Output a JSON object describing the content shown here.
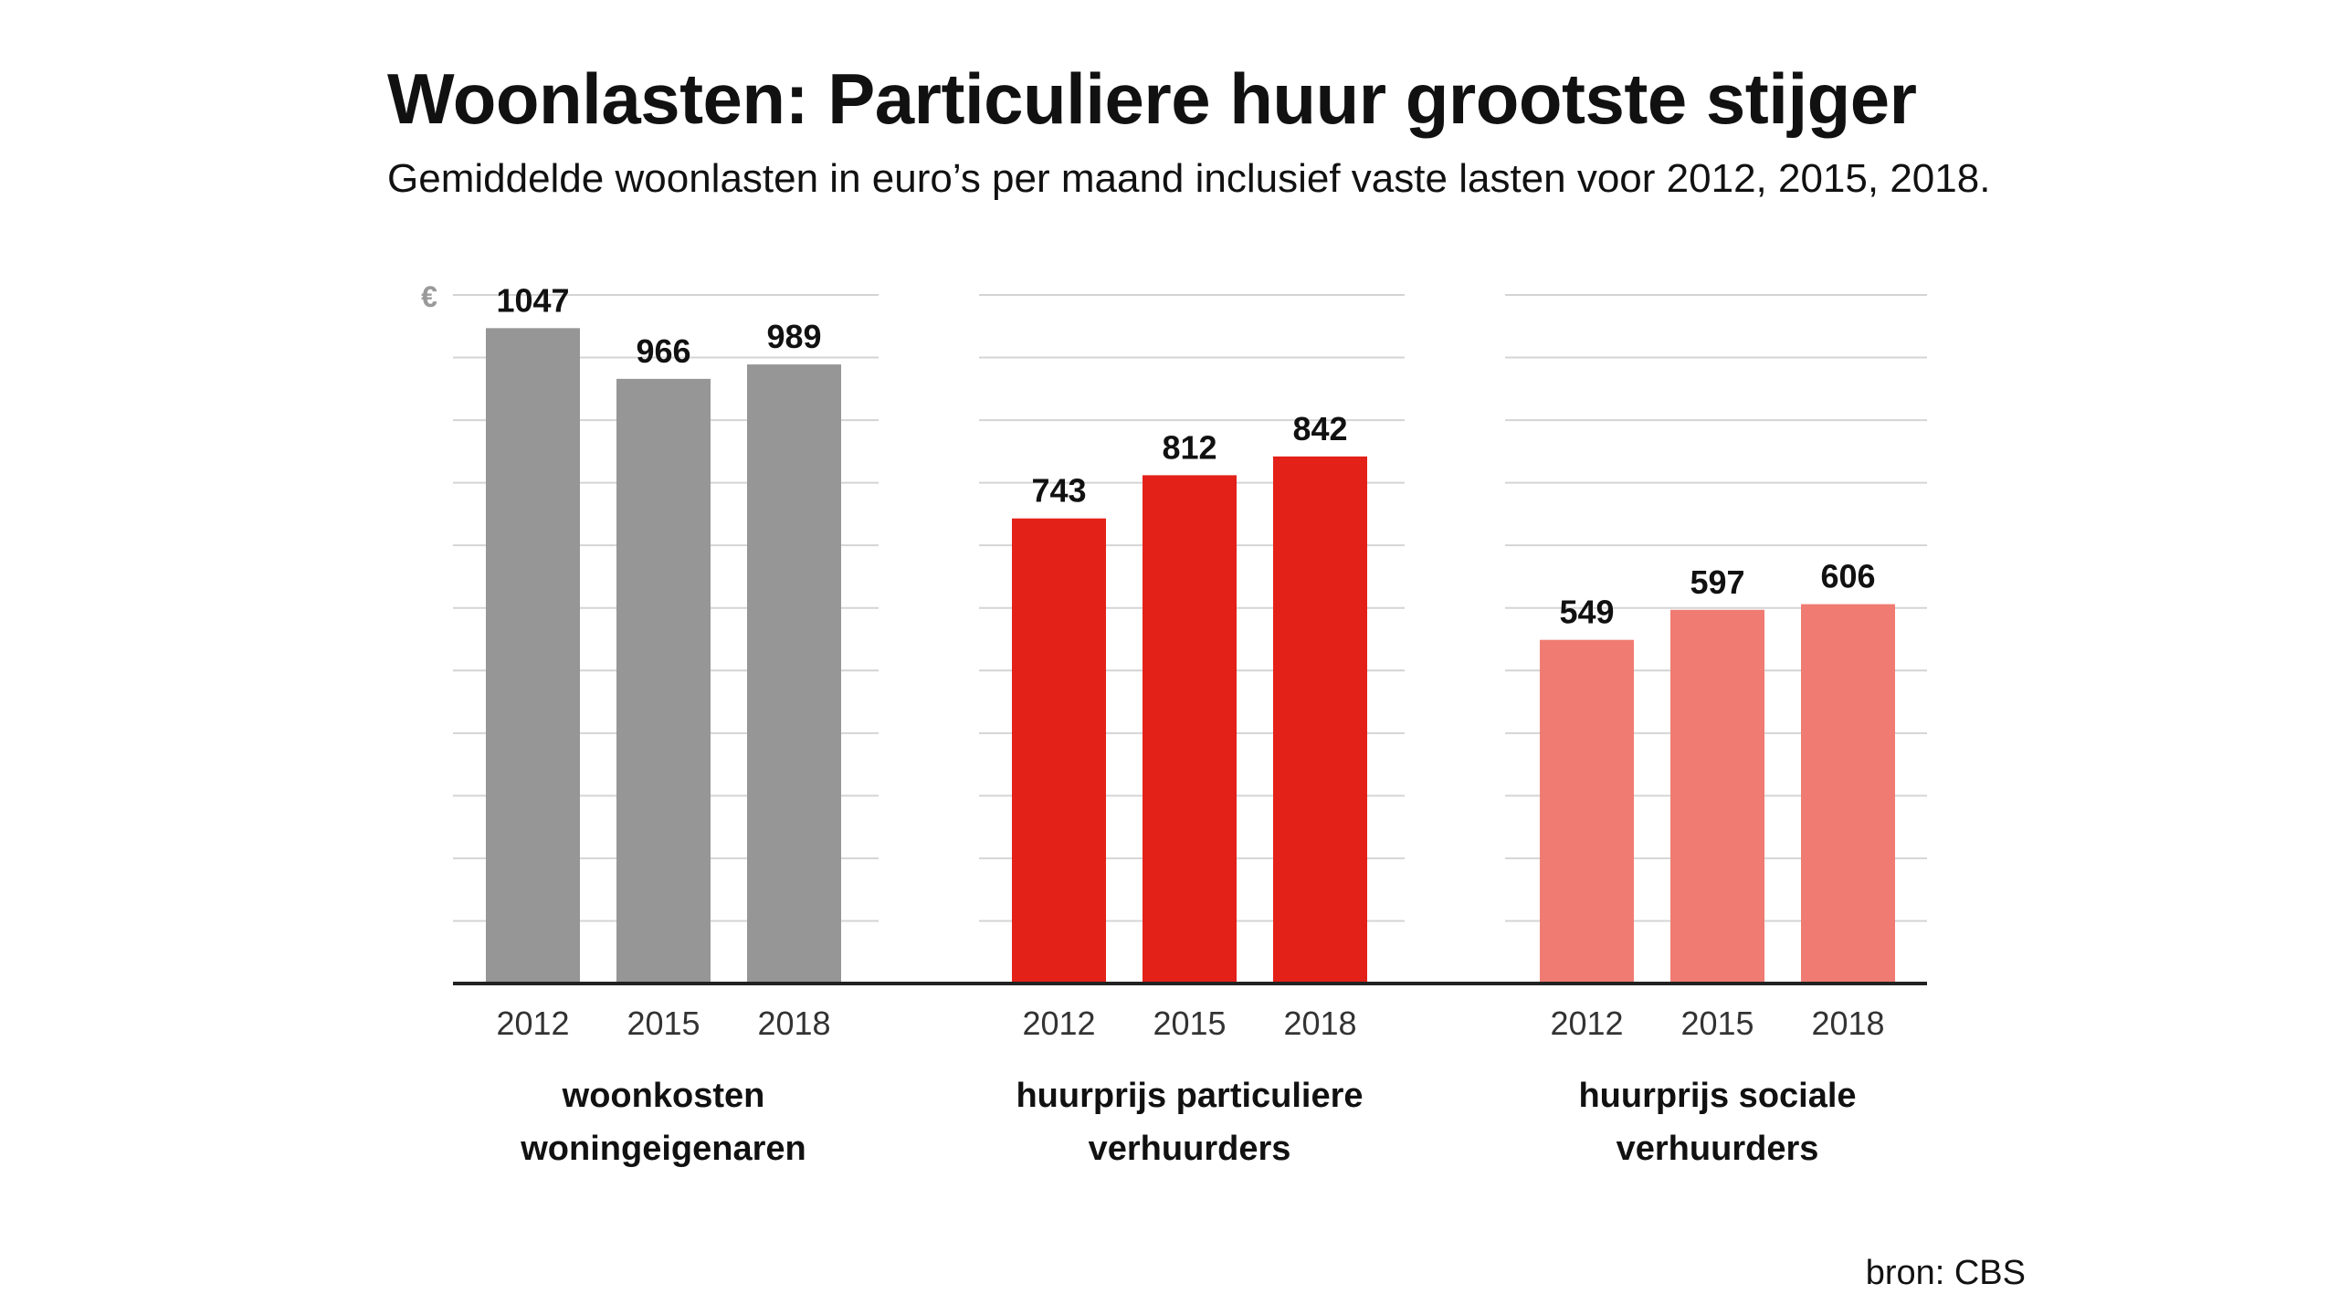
{
  "title": "Woonlasten: Particuliere huur grootste stijger",
  "subtitle": "Gemiddelde woonlasten in euro’s per maand inclusief vaste lasten voor 2012, 2015, 2018.",
  "source": "bron: CBS",
  "chart_data": {
    "type": "bar",
    "unit_symbol": "€",
    "ylim": [
      0,
      1100
    ],
    "grid": true,
    "categories": [
      "2012",
      "2015",
      "2018"
    ],
    "groups": [
      {
        "label_lines": [
          "woonkosten",
          "woningeigenaren"
        ],
        "color": "#969696",
        "values": [
          1047,
          966,
          989
        ]
      },
      {
        "label_lines": [
          "huurprijs particuliere",
          "verhuurders"
        ],
        "color": "#e32119",
        "values": [
          743,
          812,
          842
        ]
      },
      {
        "label_lines": [
          "huurprijs sociale",
          "verhuurders"
        ],
        "color": "#f07b72",
        "values": [
          549,
          597,
          606
        ]
      }
    ]
  }
}
